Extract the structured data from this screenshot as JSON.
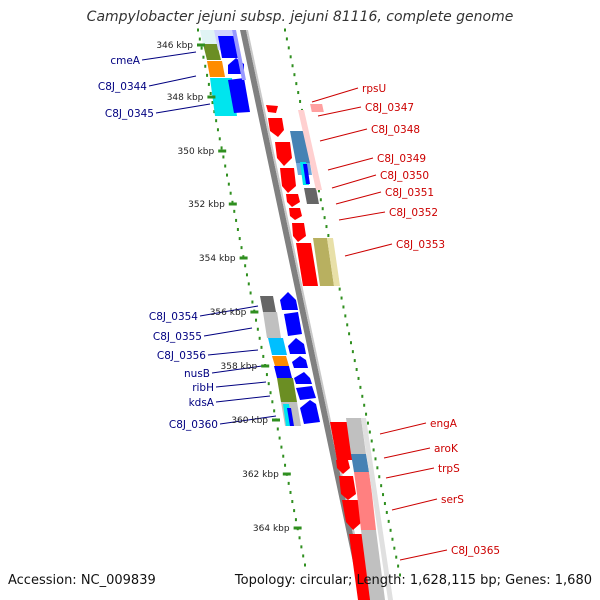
{
  "title": "Campylobacter jejuni subsp. jejuni 81116, complete genome",
  "accession": "Accession: NC_009839",
  "topology": "Topology: circular; Length: 1,628,115 bp; Genes: 1,680",
  "colors": {
    "forward": "#ff0000",
    "reverse": "#0000ff",
    "backbone": "#808080",
    "tick": "#2f8f1f",
    "label_fwd": "#cc0000",
    "label_rev": "#000080"
  },
  "scale_ticks": [
    "346 kbp",
    "348 kbp",
    "350 kbp",
    "352 kbp",
    "354 kbp",
    "356 kbp",
    "358 kbp",
    "360 kbp",
    "362 kbp",
    "364 kbp"
  ],
  "labels_forward": [
    "rpsU",
    "C8J_0347",
    "C8J_0348",
    "C8J_0349",
    "C8J_0350",
    "C8J_0351",
    "C8J_0352",
    "C8J_0353",
    "engA",
    "aroK",
    "trpS",
    "serS",
    "C8J_0365"
  ],
  "labels_reverse": [
    "cmeA",
    "C8J_0344",
    "C8J_0345",
    "C8J_0354",
    "C8J_0355",
    "C8J_0356",
    "nusB",
    "ribH",
    "kdsA",
    "C8J_0360"
  ]
}
